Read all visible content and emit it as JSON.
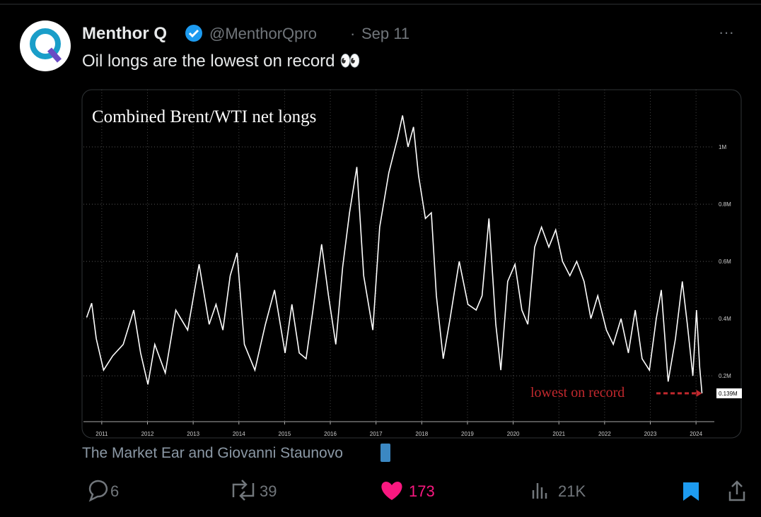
{
  "tweet": {
    "author": {
      "name": "Menthor Q",
      "handle": "@MenthorQpro",
      "separator": "·",
      "date": "Sep 11"
    },
    "menu": "···",
    "text": "Oil longs are the lowest on record 👀",
    "caption": "The Market Ear and Giovanni Staunovo",
    "actions": {
      "replies": "6",
      "reposts": "39",
      "likes": "173",
      "views": "21K"
    }
  },
  "chart_data": {
    "type": "line",
    "title": "Combined Brent/WTI net longs",
    "annotation": "lowest on record",
    "x": [
      2011.17,
      2011.28,
      2011.38,
      2011.54,
      2011.74,
      2011.97,
      2012.2,
      2012.35,
      2012.51,
      2012.66,
      2012.89,
      2013.12,
      2013.38,
      2013.63,
      2013.85,
      2014.0,
      2014.15,
      2014.31,
      2014.46,
      2014.62,
      2014.85,
      2015.08,
      2015.28,
      2015.51,
      2015.66,
      2015.82,
      2015.97,
      2016.12,
      2016.31,
      2016.46,
      2016.62,
      2016.77,
      2016.92,
      2017.08,
      2017.23,
      2017.43,
      2017.58,
      2017.78,
      2017.97,
      2018.08,
      2018.2,
      2018.32,
      2018.43,
      2018.58,
      2018.71,
      2018.82,
      2018.97,
      2019.12,
      2019.32,
      2019.51,
      2019.69,
      2019.82,
      2019.97,
      2020.12,
      2020.23,
      2020.38,
      2020.54,
      2020.69,
      2020.82,
      2020.97,
      2021.12,
      2021.28,
      2021.43,
      2021.58,
      2021.74,
      2021.89,
      2022.05,
      2022.2,
      2022.35,
      2022.54,
      2022.69,
      2022.86,
      2023.02,
      2023.17,
      2023.32,
      2023.48,
      2023.63,
      2023.74,
      2023.89,
      2024.05,
      2024.2,
      2024.31,
      2024.43,
      2024.51,
      2024.58,
      2024.63
    ],
    "series": [
      {
        "color": "#ffffff",
        "values": [
          0.404,
          0.454,
          0.33,
          0.22,
          0.27,
          0.31,
          0.43,
          0.28,
          0.17,
          0.31,
          0.21,
          0.43,
          0.36,
          0.59,
          0.38,
          0.45,
          0.36,
          0.55,
          0.63,
          0.31,
          0.22,
          0.38,
          0.5,
          0.28,
          0.45,
          0.28,
          0.26,
          0.43,
          0.66,
          0.48,
          0.31,
          0.58,
          0.77,
          0.93,
          0.55,
          0.36,
          0.72,
          0.91,
          1.03,
          1.11,
          1.0,
          1.07,
          0.9,
          0.75,
          0.77,
          0.48,
          0.26,
          0.4,
          0.6,
          0.45,
          0.43,
          0.48,
          0.75,
          0.38,
          0.22,
          0.53,
          0.59,
          0.43,
          0.38,
          0.65,
          0.72,
          0.65,
          0.71,
          0.6,
          0.55,
          0.6,
          0.53,
          0.4,
          0.48,
          0.36,
          0.31,
          0.4,
          0.28,
          0.43,
          0.26,
          0.22,
          0.4,
          0.5,
          0.18,
          0.33,
          0.53,
          0.38,
          0.2,
          0.43,
          0.23,
          0.139
        ],
        "value_labels": [
          null,
          null,
          null,
          null,
          null,
          null,
          null,
          null,
          null,
          null,
          null,
          null,
          null,
          null,
          null,
          null,
          null,
          null,
          null,
          null,
          null,
          null,
          null,
          null,
          null,
          null,
          null,
          null,
          null,
          null,
          null,
          null,
          null,
          null,
          null,
          null,
          null,
          null,
          null,
          null,
          null,
          null,
          null,
          null,
          null,
          null,
          null,
          null,
          null,
          null,
          null,
          null,
          null,
          null,
          null,
          null,
          null,
          null,
          null,
          null,
          null,
          null,
          null,
          null,
          null,
          null,
          null,
          null,
          null,
          null,
          null,
          null,
          null,
          null,
          null,
          null,
          null,
          null,
          null,
          null,
          null,
          null,
          null,
          null,
          null,
          "0.139M"
        ]
      }
    ],
    "xlim": [
      2011.1,
      2024.9
    ],
    "xticks": [
      {
        "value": 2011.5,
        "label": "2011"
      },
      {
        "value": 2012.5,
        "label": "2012"
      },
      {
        "value": 2013.5,
        "label": "2013"
      },
      {
        "value": 2014.5,
        "label": "2014"
      },
      {
        "value": 2015.5,
        "label": "2015"
      },
      {
        "value": 2016.5,
        "label": "2016"
      },
      {
        "value": 2017.5,
        "label": "2017"
      },
      {
        "value": 2018.5,
        "label": "2018"
      },
      {
        "value": 2019.5,
        "label": "2019"
      },
      {
        "value": 2020.5,
        "label": "2020"
      },
      {
        "value": 2021.5,
        "label": "2021"
      },
      {
        "value": 2022.5,
        "label": "2022"
      },
      {
        "value": 2023.5,
        "label": "2023"
      },
      {
        "value": 2024.5,
        "label": "2024"
      }
    ],
    "ylim": [
      0.04,
      1.2
    ],
    "yticks": [
      {
        "value": 0.2,
        "label": "0.2M"
      },
      {
        "value": 0.4,
        "label": "0.4M"
      },
      {
        "value": 0.6,
        "label": "0.6M"
      },
      {
        "value": 0.8,
        "label": "0.8M"
      },
      {
        "value": 1,
        "label": "1M"
      }
    ],
    "grid": true
  }
}
